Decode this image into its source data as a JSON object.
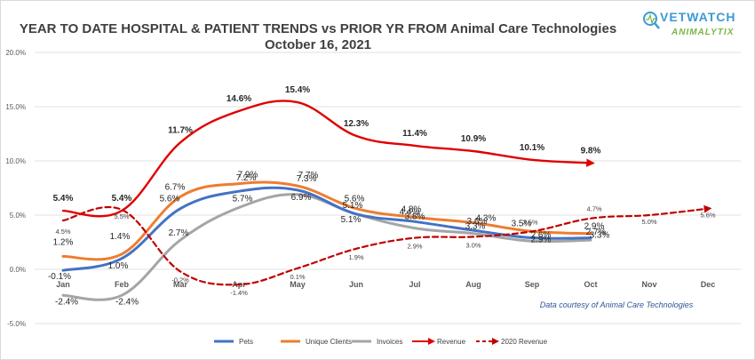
{
  "chart_data": {
    "type": "line",
    "title": "YEAR TO DATE HOSPITAL & PATIENT TRENDS vs PRIOR YR FROM Animal Care Technologies",
    "subtitle": "October 16, 2021",
    "categories": [
      "Jan",
      "Feb",
      "Mar",
      "Apr",
      "May",
      "Jun",
      "Jul",
      "Aug",
      "Sep",
      "Oct",
      "Nov",
      "Dec"
    ],
    "yticks": [
      "-5.0%",
      "0.0%",
      "5.0%",
      "10.0%",
      "15.0%",
      "20.0%"
    ],
    "ylim": [
      -5,
      20
    ],
    "grid": true,
    "legend_position": "bottom",
    "series": [
      {
        "name": "Pets",
        "color": "#4472c4",
        "values": [
          -0.1,
          1.0,
          5.6,
          7.2,
          7.3,
          5.1,
          4.4,
          3.6,
          2.9,
          2.9,
          null,
          null
        ],
        "labels": [
          "-0.1%",
          "1.0%",
          "5.6%",
          "7.2%",
          "7.3%",
          "5.1%",
          "4.4%",
          "3.6%",
          "2.9%",
          "2.9%",
          null,
          null
        ]
      },
      {
        "name": "Unique Clients",
        "color": "#ed7d31",
        "values": [
          1.2,
          1.4,
          6.7,
          7.9,
          7.7,
          5.6,
          4.8,
          4.3,
          3.5,
          3.3,
          null,
          null
        ],
        "labels": [
          "1.2%",
          "1.4%",
          "6.7%",
          "7.9%",
          "7.7%",
          "5.6%",
          "4.8%",
          "4.3%",
          "3.5%",
          "3.3%",
          null,
          null
        ]
      },
      {
        "name": "Invoices",
        "color": "#a5a5a5",
        "values": [
          -2.4,
          -2.4,
          2.7,
          5.7,
          6.9,
          5.1,
          3.8,
          3.3,
          2.6,
          2.7,
          null,
          null
        ],
        "labels": [
          "-2.4%",
          "-2.4%",
          "2.7%",
          "5.7%",
          "6.9%",
          "5.1%",
          "3.8%",
          "3.3%",
          "2.6%",
          "2.7%",
          null,
          null
        ]
      },
      {
        "name": "Revenue",
        "color": "#e00000",
        "values": [
          5.4,
          5.4,
          11.7,
          14.6,
          15.4,
          12.3,
          11.4,
          10.9,
          10.1,
          9.8,
          null,
          null
        ],
        "labels": [
          "5.4%",
          "5.4%",
          "11.7%",
          "14.6%",
          "15.4%",
          "12.3%",
          "11.4%",
          "10.9%",
          "10.1%",
          "9.8%",
          null,
          null
        ]
      },
      {
        "name": "2020 Revenue",
        "color": "#c00000",
        "values": [
          4.5,
          5.5,
          -0.2,
          -1.4,
          0.1,
          1.9,
          2.9,
          3.0,
          3.5,
          4.7,
          5.0,
          5.6
        ],
        "labels": [
          "4.5%",
          "5.5%",
          "-0.2%",
          "-1.4%",
          "0.1%",
          "1.9%",
          "2.9%",
          "3.0%",
          "3.5%",
          "4.7%",
          "5.0%",
          "5.6%"
        ]
      }
    ],
    "annotation": "Data courtesy of Animal Care Technologies"
  },
  "logo": {
    "primary": "VETWATCH",
    "secondary": "ANIMALYTIX"
  }
}
